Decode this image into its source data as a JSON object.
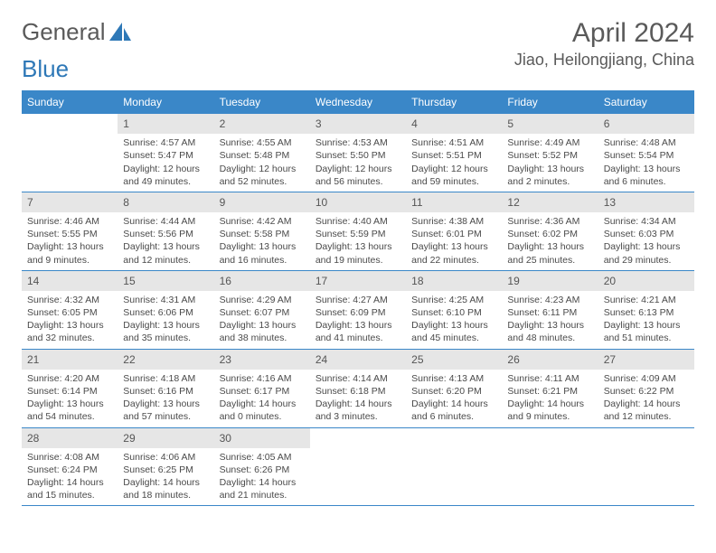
{
  "brand": {
    "part1": "General",
    "part2": "Blue"
  },
  "title": {
    "month": "April 2024",
    "location": "Jiao, Heilongjiang, China"
  },
  "colors": {
    "header_bg": "#3a87c8",
    "header_text": "#ffffff",
    "daynum_bg": "#e6e6e6",
    "cell_text": "#4a4a4a",
    "rule": "#3a87c8",
    "brand_gray": "#5a5a5a",
    "brand_blue": "#2e78b7"
  },
  "day_names": [
    "Sunday",
    "Monday",
    "Tuesday",
    "Wednesday",
    "Thursday",
    "Friday",
    "Saturday"
  ],
  "start_offset": 1,
  "days": [
    {
      "n": 1,
      "sunrise": "4:57 AM",
      "sunset": "5:47 PM",
      "dl": "12 hours and 49 minutes."
    },
    {
      "n": 2,
      "sunrise": "4:55 AM",
      "sunset": "5:48 PM",
      "dl": "12 hours and 52 minutes."
    },
    {
      "n": 3,
      "sunrise": "4:53 AM",
      "sunset": "5:50 PM",
      "dl": "12 hours and 56 minutes."
    },
    {
      "n": 4,
      "sunrise": "4:51 AM",
      "sunset": "5:51 PM",
      "dl": "12 hours and 59 minutes."
    },
    {
      "n": 5,
      "sunrise": "4:49 AM",
      "sunset": "5:52 PM",
      "dl": "13 hours and 2 minutes."
    },
    {
      "n": 6,
      "sunrise": "4:48 AM",
      "sunset": "5:54 PM",
      "dl": "13 hours and 6 minutes."
    },
    {
      "n": 7,
      "sunrise": "4:46 AM",
      "sunset": "5:55 PM",
      "dl": "13 hours and 9 minutes."
    },
    {
      "n": 8,
      "sunrise": "4:44 AM",
      "sunset": "5:56 PM",
      "dl": "13 hours and 12 minutes."
    },
    {
      "n": 9,
      "sunrise": "4:42 AM",
      "sunset": "5:58 PM",
      "dl": "13 hours and 16 minutes."
    },
    {
      "n": 10,
      "sunrise": "4:40 AM",
      "sunset": "5:59 PM",
      "dl": "13 hours and 19 minutes."
    },
    {
      "n": 11,
      "sunrise": "4:38 AM",
      "sunset": "6:01 PM",
      "dl": "13 hours and 22 minutes."
    },
    {
      "n": 12,
      "sunrise": "4:36 AM",
      "sunset": "6:02 PM",
      "dl": "13 hours and 25 minutes."
    },
    {
      "n": 13,
      "sunrise": "4:34 AM",
      "sunset": "6:03 PM",
      "dl": "13 hours and 29 minutes."
    },
    {
      "n": 14,
      "sunrise": "4:32 AM",
      "sunset": "6:05 PM",
      "dl": "13 hours and 32 minutes."
    },
    {
      "n": 15,
      "sunrise": "4:31 AM",
      "sunset": "6:06 PM",
      "dl": "13 hours and 35 minutes."
    },
    {
      "n": 16,
      "sunrise": "4:29 AM",
      "sunset": "6:07 PM",
      "dl": "13 hours and 38 minutes."
    },
    {
      "n": 17,
      "sunrise": "4:27 AM",
      "sunset": "6:09 PM",
      "dl": "13 hours and 41 minutes."
    },
    {
      "n": 18,
      "sunrise": "4:25 AM",
      "sunset": "6:10 PM",
      "dl": "13 hours and 45 minutes."
    },
    {
      "n": 19,
      "sunrise": "4:23 AM",
      "sunset": "6:11 PM",
      "dl": "13 hours and 48 minutes."
    },
    {
      "n": 20,
      "sunrise": "4:21 AM",
      "sunset": "6:13 PM",
      "dl": "13 hours and 51 minutes."
    },
    {
      "n": 21,
      "sunrise": "4:20 AM",
      "sunset": "6:14 PM",
      "dl": "13 hours and 54 minutes."
    },
    {
      "n": 22,
      "sunrise": "4:18 AM",
      "sunset": "6:16 PM",
      "dl": "13 hours and 57 minutes."
    },
    {
      "n": 23,
      "sunrise": "4:16 AM",
      "sunset": "6:17 PM",
      "dl": "14 hours and 0 minutes."
    },
    {
      "n": 24,
      "sunrise": "4:14 AM",
      "sunset": "6:18 PM",
      "dl": "14 hours and 3 minutes."
    },
    {
      "n": 25,
      "sunrise": "4:13 AM",
      "sunset": "6:20 PM",
      "dl": "14 hours and 6 minutes."
    },
    {
      "n": 26,
      "sunrise": "4:11 AM",
      "sunset": "6:21 PM",
      "dl": "14 hours and 9 minutes."
    },
    {
      "n": 27,
      "sunrise": "4:09 AM",
      "sunset": "6:22 PM",
      "dl": "14 hours and 12 minutes."
    },
    {
      "n": 28,
      "sunrise": "4:08 AM",
      "sunset": "6:24 PM",
      "dl": "14 hours and 15 minutes."
    },
    {
      "n": 29,
      "sunrise": "4:06 AM",
      "sunset": "6:25 PM",
      "dl": "14 hours and 18 minutes."
    },
    {
      "n": 30,
      "sunrise": "4:05 AM",
      "sunset": "6:26 PM",
      "dl": "14 hours and 21 minutes."
    }
  ],
  "labels": {
    "sunrise_prefix": "Sunrise: ",
    "sunset_prefix": "Sunset: ",
    "daylight_prefix": "Daylight: "
  }
}
